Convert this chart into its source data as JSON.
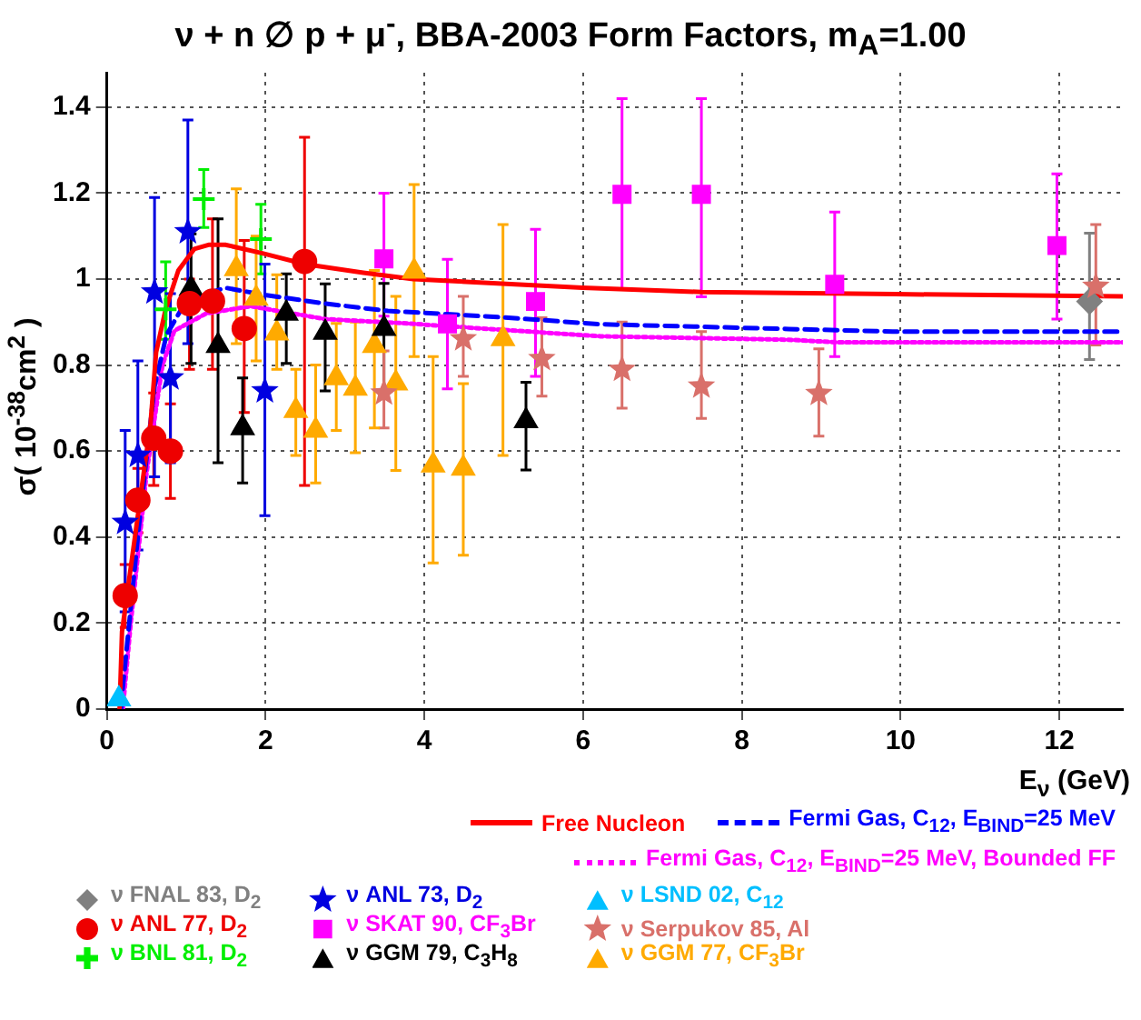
{
  "chart_data": {
    "type": "scatter",
    "title": "ν + n ∅ p + μ$^{-}$, BBA-2003 Form Factors, m$_{A}$=1.00",
    "xlabel": "E$_{ν}$ (GeV)",
    "ylabel": "σ( 10$^{-38}$cm$^{2}$ )",
    "xlim": [
      0,
      12.8
    ],
    "ylim": [
      0,
      1.48
    ],
    "xticks": [
      0,
      2,
      4,
      6,
      8,
      10,
      12
    ],
    "yticks": [
      0,
      0.2,
      0.4,
      0.6,
      0.8,
      1,
      1.2,
      1.4
    ],
    "grid": true,
    "legend": "bottom",
    "series": [
      {
        "name": "Free Nucleon",
        "type": "line",
        "line_style": "solid",
        "marker": "none",
        "color": "#ff0000",
        "x": [
          0.16,
          0.19,
          0.39,
          0.55,
          0.62,
          0.74,
          0.9,
          1.1,
          1.29,
          1.49,
          1.96,
          2.49,
          3.23,
          3.86,
          5.99,
          7.49,
          9.93,
          12.8
        ],
        "values": [
          0,
          0.18,
          0.45,
          0.665,
          0.83,
          0.93,
          1.02,
          1.07,
          1.08,
          1.08,
          1.06,
          1.035,
          1.015,
          1.0,
          0.98,
          0.97,
          0.965,
          0.96
        ]
      },
      {
        "name": "Fermi Gas, C$_{12}$, E$_{BIND}$=25 MeV",
        "type": "line",
        "line_style": "dashed",
        "marker": "none",
        "color": "#0000ff",
        "x": [
          0.18,
          0.2,
          0.4,
          0.6,
          0.75,
          1.0,
          1.49,
          1.96,
          2.75,
          3.54,
          4.33,
          5.0,
          6.22,
          8.59,
          9.9,
          12.8
        ],
        "values": [
          0,
          0.05,
          0.42,
          0.75,
          0.87,
          0.95,
          0.98,
          0.964,
          0.943,
          0.926,
          0.918,
          0.911,
          0.895,
          0.884,
          0.878,
          0.878
        ]
      },
      {
        "name": "Fermi Gas, C$_{12}$, E$_{BIND}$=25 MeV, Bounded FF",
        "type": "line",
        "line_style": "dotted",
        "marker": "none",
        "color": "#ff00ff",
        "x": [
          0.2,
          0.3,
          0.5,
          0.7,
          0.85,
          1.25,
          1.81,
          2.75,
          3.78,
          4.33,
          6.22,
          8.59,
          9.2,
          12.8
        ],
        "values": [
          0,
          0.2,
          0.55,
          0.8,
          0.88,
          0.92,
          0.937,
          0.907,
          0.897,
          0.89,
          0.867,
          0.859,
          0.853,
          0.853
        ]
      },
      {
        "name": "ν FNAL 83, D$_{2}$",
        "marker": "diamond",
        "color": "#808080",
        "x": [
          12.38
        ],
        "values": [
          0.948
        ],
        "errors": [
          [
            0.813,
            1.107
          ]
        ]
      },
      {
        "name": "ν ANL 77, D$_{2}$",
        "marker": "circle",
        "color": "#ee0000",
        "x": [
          0.23,
          0.39,
          0.59,
          0.8,
          1.04,
          1.33,
          1.73,
          2.49
        ],
        "values": [
          0.264,
          0.486,
          0.63,
          0.6,
          0.943,
          0.949,
          0.885,
          1.041
        ],
        "errors": [
          [
            0.19,
            0.336
          ],
          [
            0.41,
            0.56
          ],
          [
            0.52,
            0.735
          ],
          [
            0.49,
            0.71
          ],
          [
            0.79,
            1.0
          ],
          [
            0.79,
            1.14
          ],
          [
            0.69,
            1.09
          ],
          [
            0.52,
            1.33
          ]
        ]
      },
      {
        "name": "ν BNL 81, D$_{2}$",
        "marker": "cross",
        "color": "#00ee00",
        "x": [
          0.74,
          1.22,
          1.94
        ],
        "values": [
          0.93,
          1.186,
          1.093
        ],
        "errors": [
          [
            0.86,
            1.04
          ],
          [
            1.12,
            1.255
          ],
          [
            1.012,
            1.174
          ]
        ]
      },
      {
        "name": "ν ANL 73, D$_{2}$",
        "marker": "star",
        "color": "#0000e0",
        "x": [
          0.23,
          0.39,
          0.6,
          0.8,
          1.02,
          1.99
        ],
        "values": [
          0.434,
          0.59,
          0.97,
          0.77,
          1.11,
          0.74
        ],
        "errors": [
          [
            0.226,
            0.648
          ],
          [
            0.37,
            0.81
          ],
          [
            0.54,
            1.19
          ],
          [
            0.573,
            0.966
          ],
          [
            0.85,
            1.37
          ],
          [
            0.45,
            1.035
          ]
        ]
      },
      {
        "name": "ν SKAT 90, CF$_{3}$Br",
        "marker": "square",
        "color": "#ff00ff",
        "x": [
          3.49,
          4.29,
          5.4,
          6.49,
          7.49,
          9.17,
          11.97
        ],
        "values": [
          1.047,
          0.896,
          0.948,
          1.197,
          1.197,
          0.988,
          1.078
        ],
        "errors": [
          [
            0.914,
            1.2
          ],
          [
            0.745,
            1.046
          ],
          [
            0.774,
            1.116
          ],
          [
            0.977,
            1.42
          ],
          [
            0.959,
            1.42
          ],
          [
            0.82,
            1.156
          ],
          [
            0.907,
            1.245
          ]
        ]
      },
      {
        "name": "ν GGM 79, C$_{3}$H$_{8}$",
        "marker": "triangle",
        "color": "#000000",
        "x": [
          1.06,
          1.4,
          1.71,
          2.26,
          2.75,
          3.49,
          5.28
        ],
        "values": [
          0.978,
          0.845,
          0.654,
          0.92,
          0.876,
          0.885,
          0.67
        ],
        "errors": [
          [
            0.804,
            1.105
          ],
          [
            0.573,
            1.14
          ],
          [
            0.526,
            0.77
          ],
          [
            0.804,
            1.012
          ],
          [
            0.74,
            0.989
          ],
          [
            0.74,
            0.99
          ],
          [
            0.556,
            0.76
          ]
        ]
      },
      {
        "name": "ν LSND 02, C$_{12}$",
        "marker": "triangle",
        "color": "#00bfff",
        "x": [
          0.15
        ],
        "values": [
          0.023
        ]
      },
      {
        "name": "ν Serpukov 85, Al",
        "marker": "star",
        "color": "#d9706a",
        "x": [
          3.49,
          4.49,
          5.48,
          6.49,
          7.49,
          8.97,
          12.46
        ],
        "values": [
          0.735,
          0.861,
          0.815,
          0.79,
          0.751,
          0.734,
          0.983
        ],
        "errors": [
          [
            0.654,
            0.833
          ],
          [
            0.774,
            0.96
          ],
          [
            0.728,
            0.91
          ],
          [
            0.7,
            0.9
          ],
          [
            0.676,
            0.878
          ],
          [
            0.635,
            0.838
          ],
          [
            0.847,
            1.127
          ]
        ]
      },
      {
        "name": "ν GGM 77, CF$_{3}$Br",
        "marker": "triangle",
        "color": "#ffaa00",
        "x": [
          1.63,
          1.88,
          2.14,
          2.38,
          2.63,
          2.89,
          3.13,
          3.37,
          3.64,
          3.87,
          4.11,
          4.49,
          4.99
        ],
        "values": [
          1.024,
          0.955,
          0.874,
          0.694,
          0.648,
          0.77,
          0.746,
          0.845,
          0.758,
          1.018,
          0.567,
          0.56,
          0.861
        ],
        "errors": [
          [
            0.85,
            1.21
          ],
          [
            0.81,
            1.1
          ],
          [
            0.79,
            1.01
          ],
          [
            0.59,
            0.79
          ],
          [
            0.526,
            0.8
          ],
          [
            0.648,
            0.897
          ],
          [
            0.596,
            0.9
          ],
          [
            0.654,
            1.02
          ],
          [
            0.555,
            0.96
          ],
          [
            0.82,
            1.22
          ],
          [
            0.34,
            0.82
          ],
          [
            0.358,
            0.757
          ],
          [
            0.59,
            1.127
          ]
        ]
      }
    ]
  }
}
